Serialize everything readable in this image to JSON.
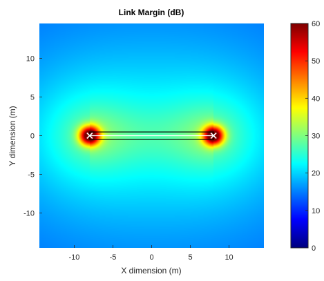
{
  "chart_data": {
    "type": "heatmap",
    "title": "Link Margin (dB)",
    "xlabel": "X dimension (m)",
    "ylabel": "Y dimension (m)",
    "xlim": [
      -14.5,
      14.5
    ],
    "ylim": [
      -14.5,
      14.5
    ],
    "x_ticks": [
      -10,
      -5,
      0,
      5,
      10
    ],
    "y_ticks": [
      -10,
      -5,
      0,
      5,
      10
    ],
    "colorbar": {
      "colormap": "jet",
      "range": [
        0,
        60
      ],
      "ticks": [
        0,
        10,
        20,
        30,
        40,
        50,
        60
      ]
    },
    "field": {
      "description_units": "dB",
      "background_far_field": 13,
      "sources": [
        {
          "x": -8,
          "y": 0,
          "peak": 60
        },
        {
          "x": 8,
          "y": 0,
          "peak": 60
        }
      ]
    },
    "overlay": {
      "link_rectangle": {
        "x": [
          -8,
          8
        ],
        "y": [
          -0.3,
          0.3
        ]
      },
      "markers": [
        {
          "x": -8,
          "y": 0,
          "symbol": "x"
        },
        {
          "x": 8,
          "y": 0,
          "symbol": "x"
        }
      ]
    },
    "colors": {
      "axis": "#262626",
      "overlay_line": "#000000",
      "overlay_inner_line": "#ffffff"
    }
  }
}
